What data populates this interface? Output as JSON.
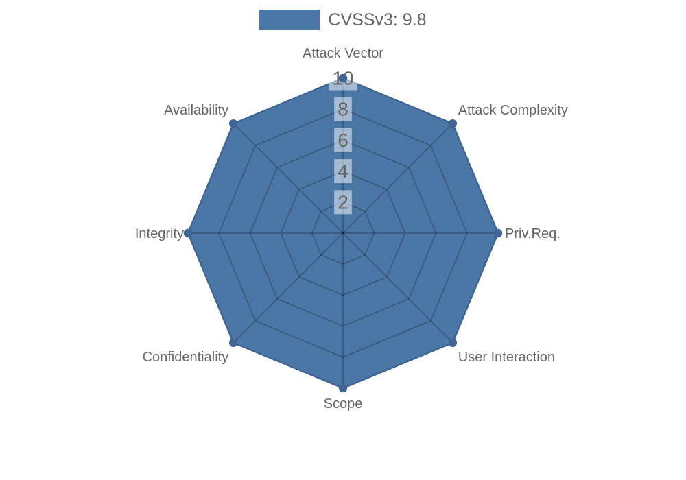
{
  "colors": {
    "series_fill": "#4b77a6",
    "series_border": "#3f6695",
    "marker": "#3f6695",
    "grid_line": "rgba(0,0,0,0.21)",
    "tick_backdrop": "rgba(255,255,255,0.5)",
    "tick_text": "#666666",
    "label_text": "#666666",
    "legend_text": "#666666",
    "background": "#ffffff"
  },
  "chart_data": {
    "type": "radar",
    "title": "",
    "categories": [
      "Attack Vector",
      "Attack Complexity",
      "Priv.Req.",
      "User Interaction",
      "Scope",
      "Confidentiality",
      "Integrity",
      "Availability"
    ],
    "series": [
      {
        "name": "CVSSv3: 9.8",
        "values": [
          10,
          10,
          10,
          10,
          10,
          10,
          10,
          10
        ]
      }
    ],
    "ticks": [
      2,
      4,
      6,
      8,
      10
    ],
    "rmin": 0,
    "rmax": 10,
    "grid": true,
    "legend_position": "top"
  }
}
